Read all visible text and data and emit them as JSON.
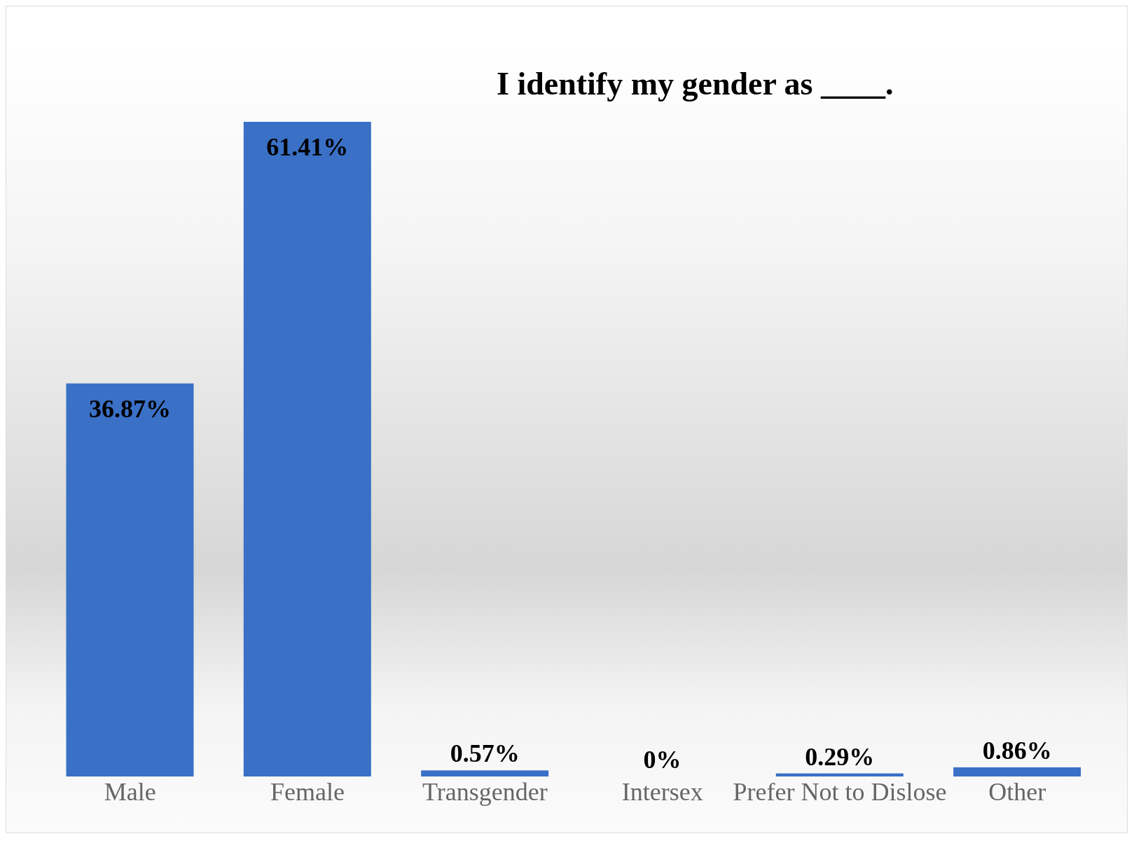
{
  "chart_data": {
    "type": "bar",
    "title": "I identify my gender as ____.",
    "categories": [
      "Male",
      "Female",
      "Transgender",
      "Intersex",
      "Prefer Not to Dislose",
      "Other"
    ],
    "values": [
      36.87,
      61.41,
      0.57,
      0,
      0.29,
      0.86
    ],
    "value_labels": [
      "36.87%",
      "61.41%",
      "0.57%",
      "0%",
      "0.29%",
      "0.86%"
    ],
    "color": "#3a70c6",
    "grid": false,
    "legend": false
  }
}
